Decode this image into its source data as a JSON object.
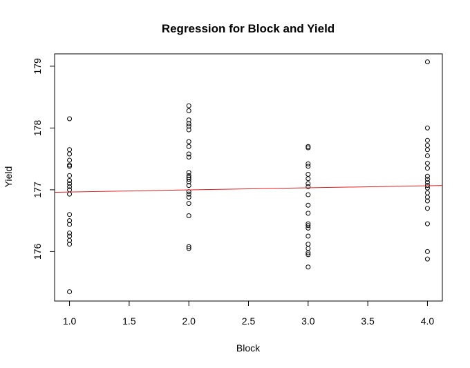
{
  "chart_data": {
    "type": "scatter",
    "title": "Regression for Block and Yield",
    "xlabel": "Block",
    "ylabel": "Yield",
    "xlim": [
      0.875,
      4.125
    ],
    "ylim": [
      175.2,
      179.2
    ],
    "xticks": [
      "1.0",
      "1.5",
      "2.0",
      "2.5",
      "3.0",
      "3.5",
      "4.0"
    ],
    "yticks": [
      "176",
      "177",
      "178",
      "179"
    ],
    "grid": false,
    "legend": "none",
    "colors": {
      "points": "#000000",
      "regression_line": "#e31a1c"
    },
    "series": [
      {
        "points": [
          [
            1,
            178.15
          ],
          [
            1,
            177.65
          ],
          [
            1,
            177.58
          ],
          [
            1,
            177.48
          ],
          [
            1,
            177.4
          ],
          [
            1,
            177.38
          ],
          [
            1,
            177.23
          ],
          [
            1,
            177.15
          ],
          [
            1,
            177.1
          ],
          [
            1,
            177.05
          ],
          [
            1,
            177.0
          ],
          [
            1,
            176.93
          ],
          [
            1,
            176.6
          ],
          [
            1,
            176.5
          ],
          [
            1,
            176.44
          ],
          [
            1,
            176.3
          ],
          [
            1,
            176.25
          ],
          [
            1,
            176.18
          ],
          [
            1,
            176.12
          ],
          [
            1,
            175.35
          ],
          [
            2,
            178.36
          ],
          [
            2,
            178.28
          ],
          [
            2,
            178.13
          ],
          [
            2,
            178.07
          ],
          [
            2,
            178.03
          ],
          [
            2,
            177.97
          ],
          [
            2,
            177.78
          ],
          [
            2,
            177.7
          ],
          [
            2,
            177.58
          ],
          [
            2,
            177.53
          ],
          [
            2,
            177.28
          ],
          [
            2,
            177.23
          ],
          [
            2,
            177.2
          ],
          [
            2,
            177.17
          ],
          [
            2,
            177.13
          ],
          [
            2,
            177.07
          ],
          [
            2,
            176.97
          ],
          [
            2,
            176.93
          ],
          [
            2,
            176.88
          ],
          [
            2,
            176.78
          ],
          [
            2,
            176.58
          ],
          [
            2,
            176.08
          ],
          [
            2,
            176.05
          ],
          [
            3,
            177.7
          ],
          [
            3,
            177.68
          ],
          [
            3,
            177.42
          ],
          [
            3,
            177.38
          ],
          [
            3,
            177.25
          ],
          [
            3,
            177.18
          ],
          [
            3,
            177.1
          ],
          [
            3,
            177.05
          ],
          [
            3,
            176.92
          ],
          [
            3,
            176.75
          ],
          [
            3,
            176.62
          ],
          [
            3,
            176.45
          ],
          [
            3,
            176.42
          ],
          [
            3,
            176.38
          ],
          [
            3,
            176.25
          ],
          [
            3,
            176.12
          ],
          [
            3,
            176.05
          ],
          [
            3,
            175.98
          ],
          [
            3,
            175.95
          ],
          [
            3,
            175.75
          ],
          [
            4,
            179.07
          ],
          [
            4,
            178.0
          ],
          [
            4,
            177.8
          ],
          [
            4,
            177.72
          ],
          [
            4,
            177.65
          ],
          [
            4,
            177.55
          ],
          [
            4,
            177.43
          ],
          [
            4,
            177.35
          ],
          [
            4,
            177.22
          ],
          [
            4,
            177.17
          ],
          [
            4,
            177.12
          ],
          [
            4,
            177.07
          ],
          [
            4,
            177.03
          ],
          [
            4,
            176.95
          ],
          [
            4,
            176.88
          ],
          [
            4,
            176.82
          ],
          [
            4,
            176.7
          ],
          [
            4,
            176.45
          ],
          [
            4,
            176.0
          ],
          [
            4,
            175.88
          ]
        ]
      }
    ],
    "regression_line": {
      "x": [
        0.875,
        4.125
      ],
      "y": [
        176.96,
        177.07
      ]
    }
  }
}
